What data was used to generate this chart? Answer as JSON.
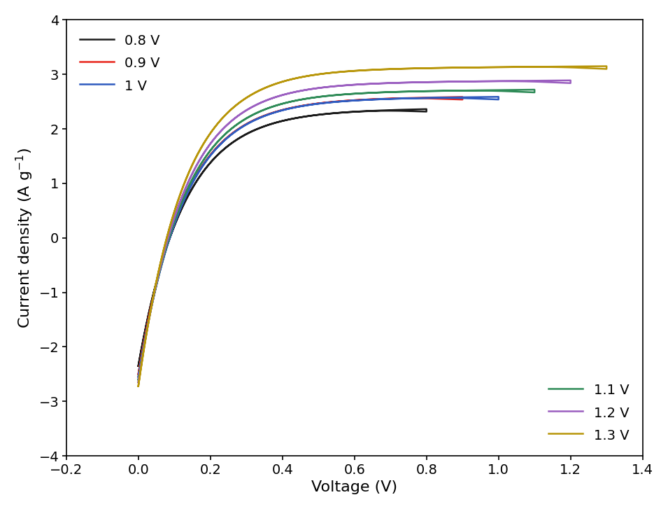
{
  "title": "",
  "xlabel": "Voltage (V)",
  "xlim": [
    -0.2,
    1.4
  ],
  "ylim": [
    -4,
    4
  ],
  "xticks": [
    -0.2,
    0.0,
    0.2,
    0.4,
    0.6,
    0.8,
    1.0,
    1.2,
    1.4
  ],
  "yticks": [
    -4,
    -3,
    -2,
    -1,
    0,
    1,
    2,
    3,
    4
  ],
  "curves": [
    {
      "label": "0.8 V",
      "color": "#1a1a1a",
      "v_max": 0.8,
      "i_up": 2.3,
      "i_dn": -2.35,
      "rise_k": 6.0,
      "fall_k": 10.0,
      "rise_v": 0.18
    },
    {
      "label": "0.9 V",
      "color": "#e8241a",
      "v_max": 0.9,
      "i_up": 2.52,
      "i_dn": -2.5,
      "rise_k": 6.0,
      "fall_k": 10.0,
      "rise_v": 0.18
    },
    {
      "label": "1 V",
      "color": "#2f5bbf",
      "v_max": 1.0,
      "i_up": 2.52,
      "i_dn": -2.55,
      "rise_k": 6.0,
      "fall_k": 10.0,
      "rise_v": 0.18
    },
    {
      "label": "1.1 V",
      "color": "#2e8b57",
      "v_max": 1.1,
      "i_up": 2.65,
      "i_dn": -2.6,
      "rise_k": 6.0,
      "fall_k": 10.0,
      "rise_v": 0.18
    },
    {
      "label": "1.2 V",
      "color": "#9b5fc0",
      "v_max": 1.2,
      "i_up": 2.82,
      "i_dn": -2.65,
      "rise_k": 6.0,
      "fall_k": 10.0,
      "rise_v": 0.18
    },
    {
      "label": "1.3 V",
      "color": "#b8960a",
      "v_max": 1.3,
      "i_up": 3.08,
      "i_dn": -2.72,
      "rise_k": 6.0,
      "fall_k": 10.0,
      "rise_v": 0.18
    }
  ],
  "background_color": "#ffffff",
  "xlabel_fontsize": 16,
  "ylabel_fontsize": 16,
  "tick_fontsize": 14,
  "legend_fontsize": 14
}
